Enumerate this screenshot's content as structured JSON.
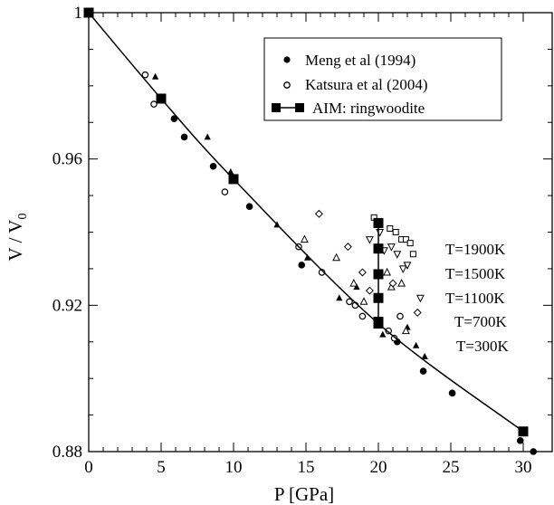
{
  "chart_data": {
    "type": "scatter",
    "xlabel": "P [GPa]",
    "ylabel_main": "V / V",
    "ylabel_sub": "0",
    "xlim": [
      0,
      32
    ],
    "ylim": [
      0.88,
      1.0
    ],
    "xticks": [
      0,
      5,
      10,
      15,
      20,
      25,
      30
    ],
    "xtick_labels": [
      "0",
      "5",
      "10",
      "15",
      "20",
      "25",
      "30"
    ],
    "yticks": [
      0.88,
      0.92,
      0.96,
      1.0
    ],
    "ytick_labels": [
      "0.88",
      "0.92",
      "0.96",
      "1"
    ],
    "legend_position": "top-right",
    "series": [
      {
        "name": "Meng et al (1994)",
        "marker": "filled-circle",
        "x": [
          5.9,
          6.6,
          8.6,
          11.1,
          14.7,
          19.9,
          21.3,
          23.1,
          25.1,
          29.8,
          30.7
        ],
        "y": [
          0.971,
          0.966,
          0.958,
          0.947,
          0.931,
          0.915,
          0.91,
          0.902,
          0.896,
          0.883,
          0.88
        ]
      },
      {
        "name": "Katsura et al (2004)",
        "marker": "open-circle",
        "x": [
          3.9,
          4.5,
          9.4,
          14.5,
          16.1,
          18.0,
          18.4,
          18.9,
          20.7,
          21.1,
          21.5
        ],
        "y": [
          0.983,
          0.975,
          0.951,
          0.936,
          0.929,
          0.921,
          0.92,
          0.917,
          0.913,
          0.911,
          0.917
        ]
      },
      {
        "name": "AIM: ringwoodite",
        "marker": "filled-square-line",
        "x": [
          0,
          5,
          10,
          20,
          30
        ],
        "y": [
          1.0,
          0.9765,
          0.9545,
          0.915,
          0.8855
        ]
      }
    ],
    "isotherm_series": [
      {
        "name": "T=300K",
        "marker": "filled-triangle",
        "x": [
          4.6,
          8.2,
          9.8,
          13.0,
          15.1,
          17.3,
          18.5,
          20.3,
          22.0,
          22.6,
          23.2
        ],
        "y": [
          0.9825,
          0.966,
          0.9565,
          0.942,
          0.933,
          0.922,
          0.925,
          0.912,
          0.914,
          0.909,
          0.906
        ]
      },
      {
        "name": "T=700K",
        "marker": "open-triangle",
        "x": [
          14.9,
          17.1,
          18.3,
          19.0,
          20.6,
          20.9,
          21.6,
          21.9
        ],
        "y": [
          0.938,
          0.933,
          0.926,
          0.921,
          0.929,
          0.925,
          0.926,
          0.913
        ]
      },
      {
        "name": "T=1100K",
        "marker": "open-inverted-triangle",
        "x": [
          19.4,
          20.1,
          20.4,
          20.9,
          21.3,
          21.7,
          22.0,
          22.9
        ],
        "y": [
          0.938,
          0.94,
          0.935,
          0.936,
          0.934,
          0.93,
          0.931,
          0.922
        ]
      },
      {
        "name": "T=1500K",
        "marker": "open-diamond",
        "x": [
          15.9,
          17.9,
          18.9,
          19.4,
          21.0,
          22.7
        ],
        "y": [
          0.945,
          0.936,
          0.929,
          0.924,
          0.926,
          0.918
        ]
      },
      {
        "name": "T=1900K",
        "marker": "open-square",
        "x": [
          19.7,
          20.0,
          20.8,
          21.2,
          21.6,
          21.9,
          22.2,
          22.4
        ],
        "y": [
          0.944,
          0.942,
          0.941,
          0.94,
          0.938,
          0.938,
          0.937,
          0.934
        ]
      }
    ],
    "isotherm_stack": {
      "x": 20,
      "y": [
        0.9155,
        0.922,
        0.9285,
        0.9355,
        0.9425
      ]
    },
    "annotations": [
      "T=1900K",
      "T=1500K",
      "T=1100K",
      "T=700K",
      "T=300K"
    ]
  }
}
